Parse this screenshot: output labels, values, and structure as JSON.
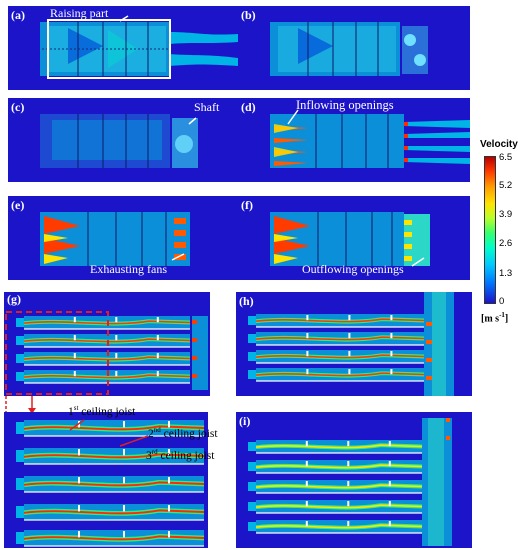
{
  "panels": {
    "a": {
      "label": "(a)",
      "annotation": "Raising part"
    },
    "b": {
      "label": "(b)"
    },
    "c": {
      "label": "(c)",
      "annotation": "Shaft"
    },
    "d": {
      "label": "(d)",
      "annotation": "Inflowing openings"
    },
    "e": {
      "label": "(e)",
      "annotation": "Exhausting fans"
    },
    "f": {
      "label": "(f)",
      "annotation": "Outflowing openings"
    },
    "g": {
      "label": "(g)"
    },
    "h": {
      "label": "(h)"
    },
    "i": {
      "label": "(i)"
    }
  },
  "joists": {
    "first": {
      "num": "1",
      "sup": "st",
      "text": " ceiling joist"
    },
    "second": {
      "num": "2",
      "sup": "nd",
      "text": " ceiling joist"
    },
    "third": {
      "num": "3",
      "sup": "rd",
      "text": " ceiling joist"
    }
  },
  "legend": {
    "title": "Velocity",
    "ticks": [
      "6.5",
      "5.2",
      "3.9",
      "2.6",
      "1.3",
      "0"
    ],
    "unit_prefix": "[m s",
    "unit_exp": "-1",
    "unit_suffix": "]"
  },
  "colors": {
    "background": "#1c14c8",
    "field": "#00b4e6",
    "jet_hot": "#ff2a00",
    "jet_warm": "#ffe400"
  }
}
